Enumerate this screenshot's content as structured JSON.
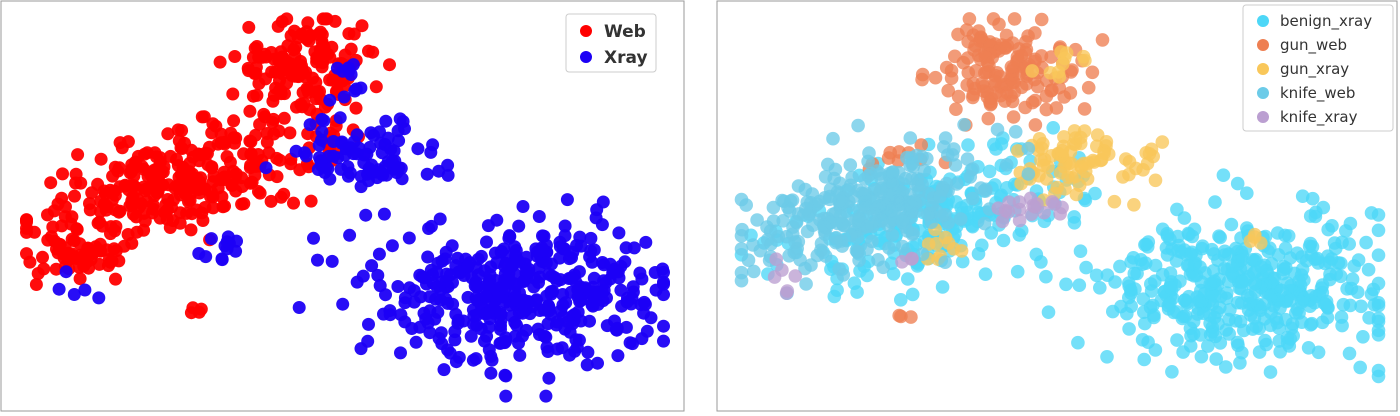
{
  "chart_data": [
    {
      "type": "scatter",
      "title": "",
      "xlabel": "",
      "ylabel": "",
      "grid": false,
      "legend_position": "top-right",
      "xlim": [
        0,
        100
      ],
      "ylim": [
        0,
        100
      ],
      "series": [
        {
          "name": "Web",
          "color": "#ff0000",
          "clusters": [
            {
              "cx": 44,
              "cy": 86,
              "sx": 5.5,
              "sy": 7,
              "n": 160
            },
            {
              "cx": 24,
              "cy": 56,
              "sx": 11,
              "sy": 7.5,
              "n": 300,
              "rho": 0.55
            },
            {
              "cx": 9,
              "cy": 38,
              "sx": 3.5,
              "sy": 3,
              "n": 50
            },
            {
              "cx": 27,
              "cy": 22,
              "sx": 0.8,
              "sy": 1.5,
              "n": 4
            }
          ]
        },
        {
          "name": "Xray",
          "color": "#1c00f5",
          "clusters": [
            {
              "cx": 51,
              "cy": 83,
              "sx": 2,
              "sy": 4,
              "n": 12
            },
            {
              "cx": 53,
              "cy": 63,
              "sx": 6,
              "sy": 5,
              "n": 90
            },
            {
              "cx": 78,
              "cy": 28,
              "sx": 11,
              "sy": 9,
              "n": 420
            },
            {
              "cx": 32,
              "cy": 40,
              "sx": 2.5,
              "sy": 3,
              "n": 12
            },
            {
              "cx": 8,
              "cy": 28,
              "sx": 2,
              "sy": 2.5,
              "n": 5
            }
          ]
        }
      ]
    },
    {
      "type": "scatter",
      "title": "",
      "xlabel": "",
      "ylabel": "",
      "grid": false,
      "legend_position": "top-right",
      "xlim": [
        0,
        100
      ],
      "ylim": [
        0,
        100
      ],
      "series": [
        {
          "name": "benign_xray",
          "color": "#4dd7f7",
          "clusters": [
            {
              "cx": 78,
              "cy": 30,
              "sx": 11,
              "sy": 9,
              "n": 420
            },
            {
              "cx": 30,
              "cy": 47,
              "sx": 12,
              "sy": 9,
              "n": 260,
              "rho": 0.5
            }
          ]
        },
        {
          "name": "gun_web",
          "color": "#ee7f52",
          "clusters": [
            {
              "cx": 42,
              "cy": 86,
              "sx": 5,
              "sy": 6.5,
              "n": 150
            },
            {
              "cx": 27,
              "cy": 62,
              "sx": 4,
              "sy": 2,
              "n": 10
            },
            {
              "cx": 26,
              "cy": 21,
              "sx": 0.6,
              "sy": 0.6,
              "n": 3
            }
          ]
        },
        {
          "name": "gun_xray",
          "color": "#f9c75a",
          "clusters": [
            {
              "cx": 53,
              "cy": 62,
              "sx": 5,
              "sy": 4.5,
              "n": 80
            },
            {
              "cx": 51,
              "cy": 87,
              "sx": 1.5,
              "sy": 3,
              "n": 10
            },
            {
              "cx": 32,
              "cy": 39,
              "sx": 1.5,
              "sy": 3,
              "n": 10
            },
            {
              "cx": 80,
              "cy": 42,
              "sx": 1,
              "sy": 0.8,
              "n": 4
            }
          ]
        },
        {
          "name": "knife_web",
          "color": "#6ccbe8",
          "clusters": [
            {
              "cx": 20,
              "cy": 50,
              "sx": 9,
              "sy": 8,
              "n": 280,
              "rho": 0.5
            }
          ]
        },
        {
          "name": "knife_xray",
          "color": "#bb9fd1",
          "clusters": [
            {
              "cx": 46,
              "cy": 50,
              "sx": 3,
              "sy": 1.5,
              "n": 18
            },
            {
              "cx": 7,
              "cy": 30,
              "sx": 1.5,
              "sy": 2,
              "n": 6
            },
            {
              "cx": 27,
              "cy": 37,
              "sx": 1,
              "sy": 1.5,
              "n": 3
            }
          ]
        }
      ]
    }
  ]
}
